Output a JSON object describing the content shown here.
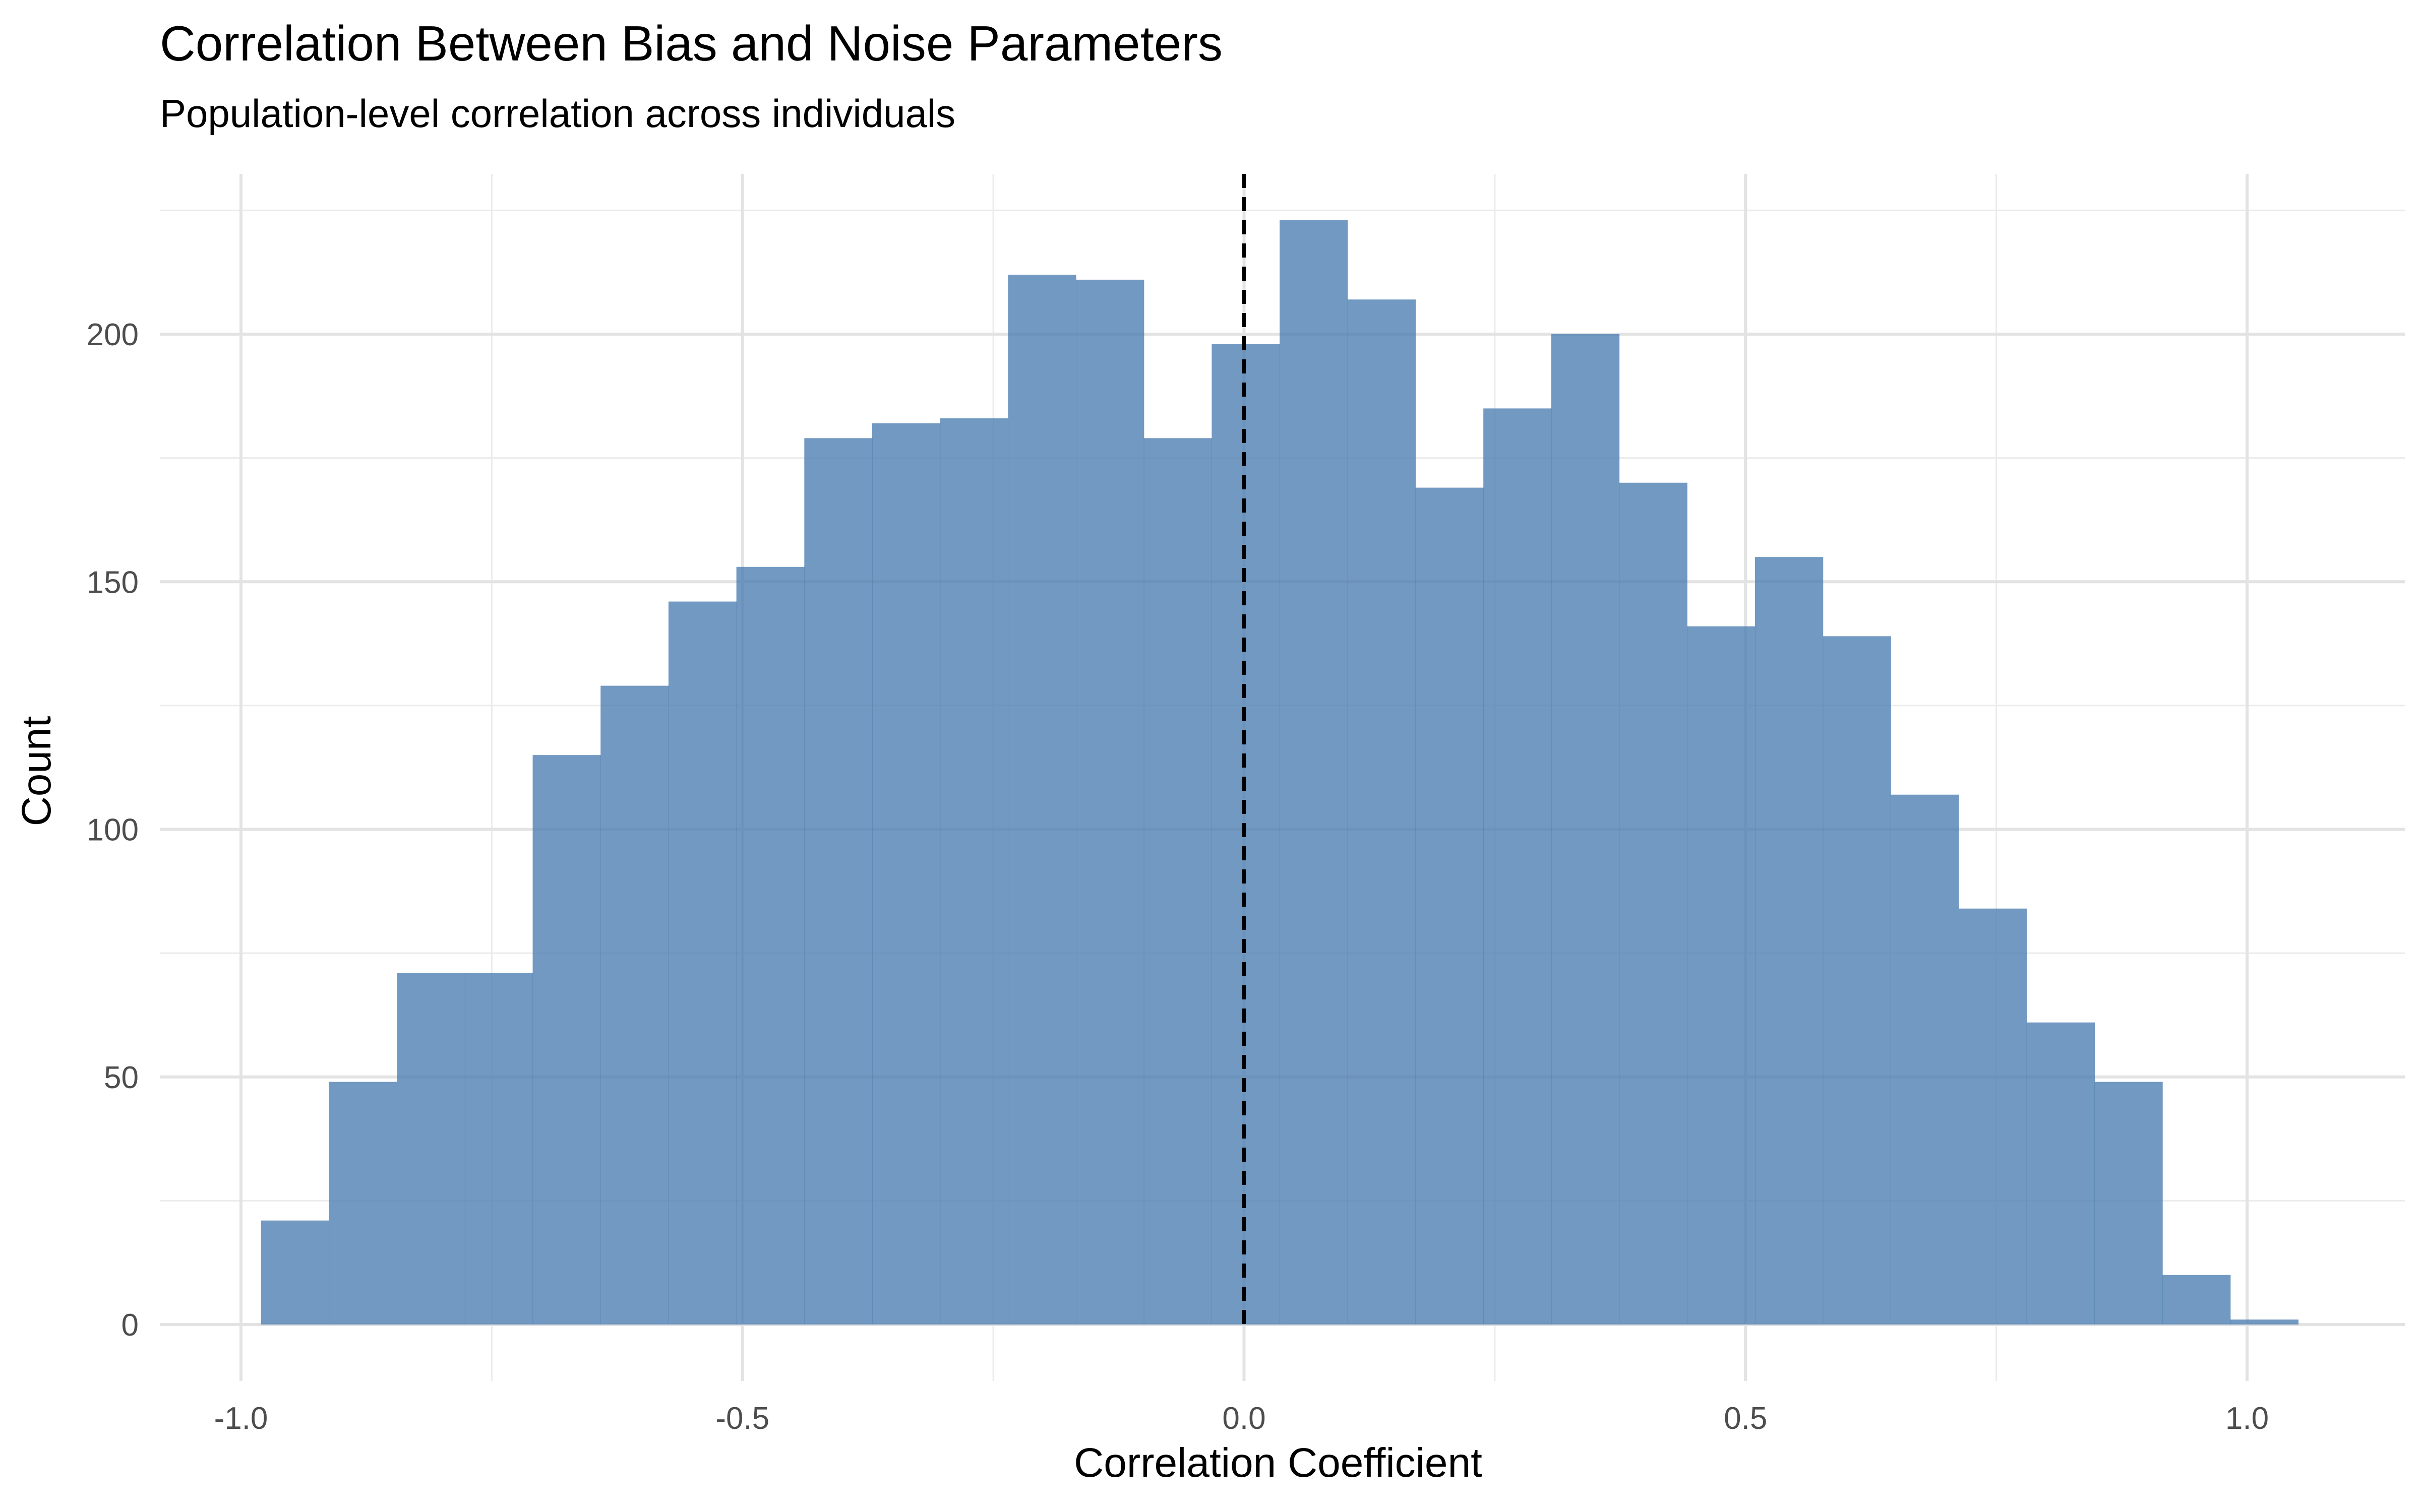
{
  "chart_data": {
    "type": "histogram",
    "title": "Correlation Between Bias and Noise Parameters",
    "subtitle": "Population-level correlation across individuals",
    "xlabel": "Correlation Coefficient",
    "ylabel": "Count",
    "xlim": [
      -1.05,
      1.15
    ],
    "ylim": [
      0,
      230
    ],
    "x_ticks": [
      -1.0,
      -0.5,
      0.0,
      0.5,
      1.0
    ],
    "x_tick_labels": [
      "-1.0",
      "-0.5",
      "0.0",
      "0.5",
      "1.0"
    ],
    "y_ticks": [
      0,
      50,
      100,
      150,
      200
    ],
    "y_tick_labels": [
      "0",
      "50",
      "100",
      "150",
      "200"
    ],
    "bin_start": -0.98,
    "bin_width": 0.0677,
    "counts": [
      21,
      49,
      71,
      71,
      115,
      129,
      146,
      153,
      179,
      182,
      183,
      212,
      211,
      179,
      198,
      223,
      207,
      169,
      185,
      200,
      170,
      141,
      155,
      139,
      107,
      84,
      61,
      49,
      10,
      1
    ],
    "reference_line": {
      "x": 0.0,
      "style": "dashed",
      "color": "#000000"
    },
    "bar_color": "#4a7cb0",
    "grid": true
  }
}
